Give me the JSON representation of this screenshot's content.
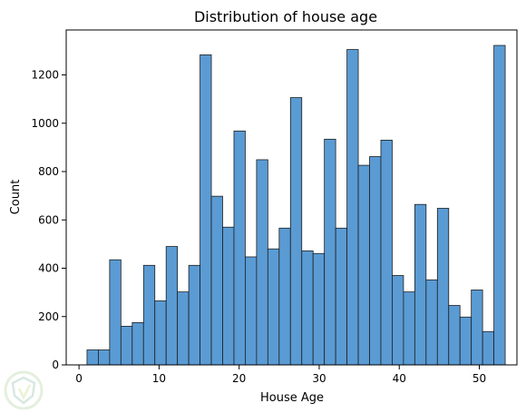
{
  "chart_data": {
    "type": "bar",
    "title": "Distribution of house age",
    "xlabel": "House Age",
    "ylabel": "Count",
    "xlim": [
      -1.6,
      54.7
    ],
    "ylim": [
      0,
      1386
    ],
    "xticks": [
      0,
      10,
      20,
      30,
      40,
      50
    ],
    "yticks": [
      0,
      200,
      400,
      600,
      800,
      1000,
      1200
    ],
    "grid": false,
    "bar_color": "#5a9bd4",
    "bins": [
      {
        "x0": 1.0,
        "x1": 2.412,
        "value": 62
      },
      {
        "x0": 2.412,
        "x1": 3.824,
        "value": 62
      },
      {
        "x0": 3.824,
        "x1": 5.235,
        "value": 435
      },
      {
        "x0": 5.235,
        "x1": 6.647,
        "value": 160
      },
      {
        "x0": 6.647,
        "x1": 8.059,
        "value": 175
      },
      {
        "x0": 8.059,
        "x1": 9.471,
        "value": 412
      },
      {
        "x0": 9.471,
        "x1": 10.882,
        "value": 265
      },
      {
        "x0": 10.882,
        "x1": 12.294,
        "value": 490
      },
      {
        "x0": 12.294,
        "x1": 13.706,
        "value": 302
      },
      {
        "x0": 13.706,
        "x1": 15.118,
        "value": 412
      },
      {
        "x0": 15.118,
        "x1": 16.529,
        "value": 1283
      },
      {
        "x0": 16.529,
        "x1": 17.941,
        "value": 698
      },
      {
        "x0": 17.941,
        "x1": 19.353,
        "value": 570
      },
      {
        "x0": 19.353,
        "x1": 20.765,
        "value": 968
      },
      {
        "x0": 20.765,
        "x1": 22.176,
        "value": 447
      },
      {
        "x0": 22.176,
        "x1": 23.588,
        "value": 849
      },
      {
        "x0": 23.588,
        "x1": 25.0,
        "value": 480
      },
      {
        "x0": 25.0,
        "x1": 26.412,
        "value": 566
      },
      {
        "x0": 26.412,
        "x1": 27.824,
        "value": 1106
      },
      {
        "x0": 27.824,
        "x1": 29.235,
        "value": 472
      },
      {
        "x0": 29.235,
        "x1": 30.647,
        "value": 461
      },
      {
        "x0": 30.647,
        "x1": 32.059,
        "value": 934
      },
      {
        "x0": 32.059,
        "x1": 33.471,
        "value": 566
      },
      {
        "x0": 33.471,
        "x1": 34.882,
        "value": 1305
      },
      {
        "x0": 34.882,
        "x1": 36.294,
        "value": 826
      },
      {
        "x0": 36.294,
        "x1": 37.706,
        "value": 862
      },
      {
        "x0": 37.706,
        "x1": 39.118,
        "value": 930
      },
      {
        "x0": 39.118,
        "x1": 40.529,
        "value": 370
      },
      {
        "x0": 40.529,
        "x1": 41.941,
        "value": 302
      },
      {
        "x0": 41.941,
        "x1": 43.353,
        "value": 664
      },
      {
        "x0": 43.353,
        "x1": 44.765,
        "value": 352
      },
      {
        "x0": 44.765,
        "x1": 46.176,
        "value": 648
      },
      {
        "x0": 46.176,
        "x1": 47.588,
        "value": 246
      },
      {
        "x0": 47.588,
        "x1": 49.0,
        "value": 198
      },
      {
        "x0": 49.0,
        "x1": 50.412,
        "value": 310
      },
      {
        "x0": 50.412,
        "x1": 51.824,
        "value": 138
      },
      {
        "x0": 51.824,
        "x1": 53.235,
        "value": 1322
      }
    ]
  }
}
